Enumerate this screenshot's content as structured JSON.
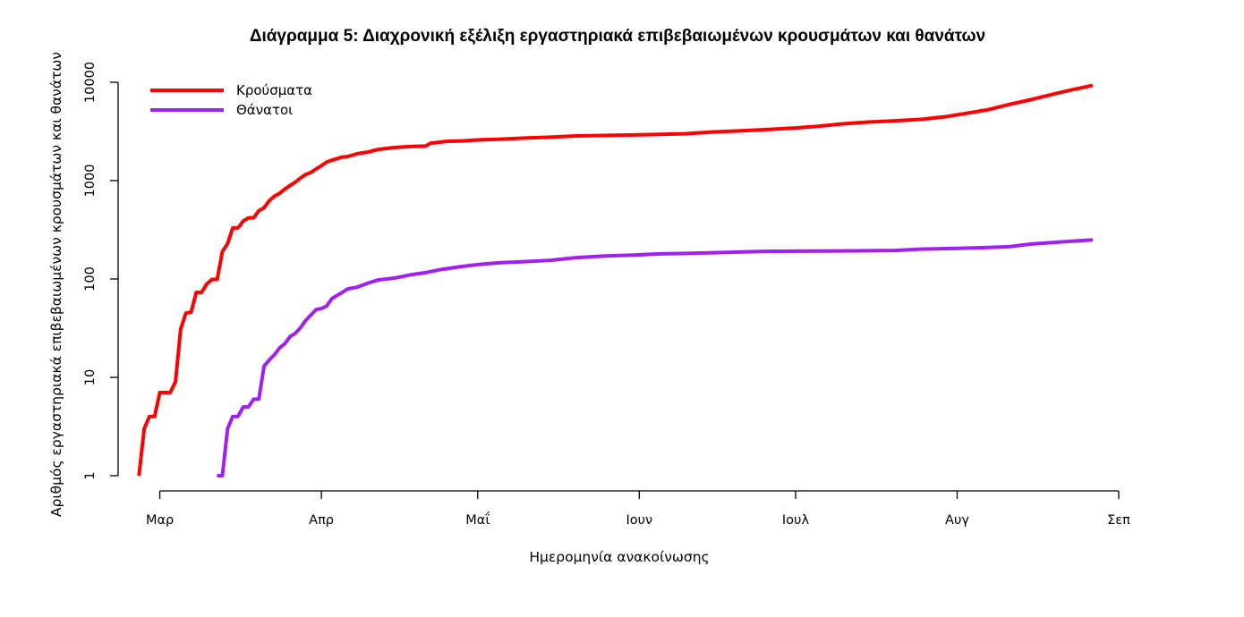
{
  "chart_data": {
    "type": "line",
    "title": "Διάγραμμα 5: Διαχρονική εξέλιξη εργαστηριακά επιβεβαιωμένων κρουσμάτων και θανάτων",
    "xlabel": "Ημερομηνία ανακοίνωσης",
    "ylabel": "Αριθμός εργαστηριακά επιβεβαιωμένων κρουσμάτων και θανάτων",
    "y_scale": "log",
    "ylim": [
      1,
      10000
    ],
    "xlim": [
      "2020-02-22",
      "2020-09-01"
    ],
    "x_ticks": [
      {
        "date": "2020-03-01",
        "label": "Μαρ"
      },
      {
        "date": "2020-04-01",
        "label": "Απρ"
      },
      {
        "date": "2020-05-01",
        "label": "Μαΐ"
      },
      {
        "date": "2020-06-01",
        "label": "Ιουν"
      },
      {
        "date": "2020-07-01",
        "label": "Ιουλ"
      },
      {
        "date": "2020-08-01",
        "label": "Αυγ"
      },
      {
        "date": "2020-09-01",
        "label": "Σεπ"
      }
    ],
    "y_ticks": [
      {
        "value": 1,
        "label": "1"
      },
      {
        "value": 10,
        "label": "10"
      },
      {
        "value": 100,
        "label": "100"
      },
      {
        "value": 1000,
        "label": "1000"
      },
      {
        "value": 10000,
        "label": "10000"
      }
    ],
    "grid": false,
    "legend_position": "top-left",
    "series": [
      {
        "name": "Κρούσματα",
        "color": "#ff0000",
        "points": [
          [
            "2020-02-26",
            1
          ],
          [
            "2020-02-27",
            3
          ],
          [
            "2020-02-28",
            4
          ],
          [
            "2020-02-29",
            4
          ],
          [
            "2020-03-01",
            7
          ],
          [
            "2020-03-03",
            7
          ],
          [
            "2020-03-04",
            9
          ],
          [
            "2020-03-05",
            31
          ],
          [
            "2020-03-06",
            45
          ],
          [
            "2020-03-07",
            46
          ],
          [
            "2020-03-08",
            73
          ],
          [
            "2020-03-09",
            73
          ],
          [
            "2020-03-10",
            89
          ],
          [
            "2020-03-11",
            99
          ],
          [
            "2020-03-12",
            99
          ],
          [
            "2020-03-13",
            190
          ],
          [
            "2020-03-14",
            228
          ],
          [
            "2020-03-15",
            331
          ],
          [
            "2020-03-16",
            331
          ],
          [
            "2020-03-17",
            387
          ],
          [
            "2020-03-18",
            418
          ],
          [
            "2020-03-19",
            418
          ],
          [
            "2020-03-20",
            495
          ],
          [
            "2020-03-21",
            530
          ],
          [
            "2020-03-22",
            624
          ],
          [
            "2020-03-23",
            695
          ],
          [
            "2020-03-24",
            743
          ],
          [
            "2020-03-25",
            821
          ],
          [
            "2020-03-26",
            892
          ],
          [
            "2020-03-27",
            966
          ],
          [
            "2020-03-28",
            1061
          ],
          [
            "2020-03-29",
            1156
          ],
          [
            "2020-03-30",
            1212
          ],
          [
            "2020-03-31",
            1314
          ],
          [
            "2020-04-01",
            1415
          ],
          [
            "2020-04-02",
            1544
          ],
          [
            "2020-04-03",
            1613
          ],
          [
            "2020-04-04",
            1673
          ],
          [
            "2020-04-05",
            1735
          ],
          [
            "2020-04-06",
            1755
          ],
          [
            "2020-04-08",
            1884
          ],
          [
            "2020-04-10",
            1955
          ],
          [
            "2020-04-12",
            2081
          ],
          [
            "2020-04-15",
            2170
          ],
          [
            "2020-04-18",
            2224
          ],
          [
            "2020-04-21",
            2245
          ],
          [
            "2020-04-22",
            2401
          ],
          [
            "2020-04-25",
            2506
          ],
          [
            "2020-04-28",
            2534
          ],
          [
            "2020-05-01",
            2591
          ],
          [
            "2020-05-05",
            2632
          ],
          [
            "2020-05-10",
            2710
          ],
          [
            "2020-05-15",
            2770
          ],
          [
            "2020-05-20",
            2850
          ],
          [
            "2020-05-25",
            2880
          ],
          [
            "2020-05-31",
            2915
          ],
          [
            "2020-06-05",
            2952
          ],
          [
            "2020-06-10",
            3000
          ],
          [
            "2020-06-15",
            3121
          ],
          [
            "2020-06-20",
            3203
          ],
          [
            "2020-06-25",
            3300
          ],
          [
            "2020-07-01",
            3432
          ],
          [
            "2020-07-05",
            3560
          ],
          [
            "2020-07-10",
            3775
          ],
          [
            "2020-07-15",
            3940
          ],
          [
            "2020-07-20",
            4050
          ],
          [
            "2020-07-25",
            4193
          ],
          [
            "2020-07-30",
            4477
          ],
          [
            "2020-08-03",
            4855
          ],
          [
            "2020-08-07",
            5270
          ],
          [
            "2020-08-11",
            5942
          ],
          [
            "2020-08-15",
            6632
          ],
          [
            "2020-08-19",
            7472
          ],
          [
            "2020-08-23",
            8381
          ],
          [
            "2020-08-27",
            9280
          ]
        ]
      },
      {
        "name": "Θάνατοι",
        "color": "#a020f0",
        "points": [
          [
            "2020-03-12",
            1
          ],
          [
            "2020-03-13",
            1
          ],
          [
            "2020-03-14",
            3
          ],
          [
            "2020-03-15",
            4
          ],
          [
            "2020-03-16",
            4
          ],
          [
            "2020-03-17",
            5
          ],
          [
            "2020-03-18",
            5
          ],
          [
            "2020-03-19",
            6
          ],
          [
            "2020-03-20",
            6
          ],
          [
            "2020-03-21",
            13
          ],
          [
            "2020-03-22",
            15
          ],
          [
            "2020-03-23",
            17
          ],
          [
            "2020-03-24",
            20
          ],
          [
            "2020-03-25",
            22
          ],
          [
            "2020-03-26",
            26
          ],
          [
            "2020-03-27",
            28
          ],
          [
            "2020-03-28",
            32
          ],
          [
            "2020-03-29",
            38
          ],
          [
            "2020-03-30",
            43
          ],
          [
            "2020-03-31",
            49
          ],
          [
            "2020-04-01",
            50
          ],
          [
            "2020-04-02",
            53
          ],
          [
            "2020-04-03",
            63
          ],
          [
            "2020-04-04",
            68
          ],
          [
            "2020-04-05",
            73
          ],
          [
            "2020-04-06",
            79
          ],
          [
            "2020-04-08",
            83
          ],
          [
            "2020-04-10",
            91
          ],
          [
            "2020-04-12",
            98
          ],
          [
            "2020-04-15",
            102
          ],
          [
            "2020-04-18",
            110
          ],
          [
            "2020-04-21",
            116
          ],
          [
            "2020-04-24",
            125
          ],
          [
            "2020-04-28",
            134
          ],
          [
            "2020-05-01",
            140
          ],
          [
            "2020-05-05",
            146
          ],
          [
            "2020-05-10",
            150
          ],
          [
            "2020-05-15",
            155
          ],
          [
            "2020-05-20",
            165
          ],
          [
            "2020-05-25",
            171
          ],
          [
            "2020-05-31",
            175
          ],
          [
            "2020-06-05",
            180
          ],
          [
            "2020-06-10",
            182
          ],
          [
            "2020-06-15",
            185
          ],
          [
            "2020-06-20",
            188
          ],
          [
            "2020-06-25",
            191
          ],
          [
            "2020-07-01",
            192
          ],
          [
            "2020-07-10",
            193
          ],
          [
            "2020-07-20",
            195
          ],
          [
            "2020-07-25",
            201
          ],
          [
            "2020-08-01",
            205
          ],
          [
            "2020-08-07",
            209
          ],
          [
            "2020-08-11",
            213
          ],
          [
            "2020-08-15",
            226
          ],
          [
            "2020-08-19",
            234
          ],
          [
            "2020-08-23",
            242
          ],
          [
            "2020-08-27",
            250
          ]
        ]
      }
    ]
  }
}
